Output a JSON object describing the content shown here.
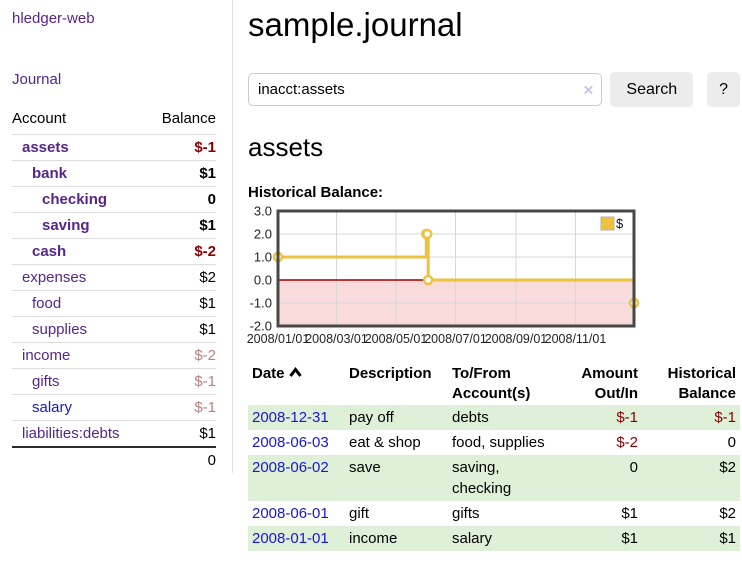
{
  "app": {
    "title": "hledger-web"
  },
  "sidebar": {
    "journal_label": "Journal",
    "accounts_table": {
      "account_header": "Account",
      "balance_header": "Balance",
      "rows": [
        {
          "name": "assets",
          "balance": "$-1",
          "depth": 1,
          "in_account": true,
          "balance_style": "negative"
        },
        {
          "name": "bank",
          "balance": "$1",
          "depth": 2,
          "in_account": true,
          "balance_style": "positive"
        },
        {
          "name": "checking",
          "balance": "0",
          "depth": 3,
          "in_account": true,
          "balance_style": "positive"
        },
        {
          "name": "saving",
          "balance": "$1",
          "depth": 3,
          "in_account": true,
          "balance_style": "positive"
        },
        {
          "name": "cash",
          "balance": "$-2",
          "depth": 2,
          "in_account": true,
          "balance_style": "negative"
        },
        {
          "name": "expenses",
          "balance": "$2",
          "depth": 1,
          "in_account": false,
          "balance_style": "positive"
        },
        {
          "name": "food",
          "balance": "$1",
          "depth": 2,
          "in_account": false,
          "balance_style": "positive"
        },
        {
          "name": "supplies",
          "balance": "$1",
          "depth": 2,
          "in_account": false,
          "balance_style": "positive"
        },
        {
          "name": "income",
          "balance": "$-2",
          "depth": 1,
          "in_account": false,
          "balance_style": "negative-muted"
        },
        {
          "name": "gifts",
          "balance": "$-1",
          "depth": 2,
          "in_account": false,
          "balance_style": "negative-muted"
        },
        {
          "name": "salary",
          "balance": "$-1",
          "depth": 2,
          "in_account": false,
          "balance_style": "negative-muted",
          "link_style": "unvisited"
        },
        {
          "name": "liabilities:debts",
          "balance": "$1",
          "depth": 1,
          "in_account": false,
          "balance_style": "positive"
        }
      ],
      "total": "0"
    }
  },
  "main": {
    "title": "sample.journal",
    "search": {
      "value": "inacct:assets",
      "clear_icon": "×",
      "button_label": "Search",
      "help_label": "?"
    },
    "account_heading": "assets",
    "chart_label": "Historical Balance:"
  },
  "chart_data": {
    "type": "line",
    "title": "Historical Balance",
    "style": "step",
    "series": [
      {
        "name": "$",
        "color": "#edc240",
        "points": [
          [
            "2008-01-01",
            1
          ],
          [
            "2008-06-01",
            2
          ],
          [
            "2008-06-02",
            2
          ],
          [
            "2008-06-03",
            0
          ],
          [
            "2008-12-31",
            -1
          ]
        ]
      }
    ],
    "xlim": [
      "2008-01-01",
      "2008-12-31"
    ],
    "ylim": [
      -2,
      3
    ],
    "yticks": [
      {
        "value": 3,
        "label": "3.0"
      },
      {
        "value": 2,
        "label": "2.0"
      },
      {
        "value": 1,
        "label": "1.0"
      },
      {
        "value": 0,
        "label": "0.0"
      },
      {
        "value": -1,
        "label": "-1.0"
      },
      {
        "value": -2,
        "label": "-2.0"
      }
    ],
    "xticks": [
      {
        "date": "2008-01-01",
        "label": "2008/01/01"
      },
      {
        "date": "2008-03-01",
        "label": "2008/03/01"
      },
      {
        "date": "2008-05-01",
        "label": "2008/05/01"
      },
      {
        "date": "2008-07-01",
        "label": "2008/07/01"
      },
      {
        "date": "2008-09-01",
        "label": "2008/09/01"
      },
      {
        "date": "2008-11-01",
        "label": "2008/11/01"
      }
    ],
    "legend": {
      "position": "top-right",
      "entries": [
        {
          "label": "$",
          "color": "#edc240"
        }
      ]
    },
    "grid": true,
    "grid_color": "#d8d8d8",
    "frame_color": "#474747",
    "zero_line_color": "#a40000",
    "negative_region_color": "#f9dbdb"
  },
  "transactions": {
    "headers": {
      "date": "Date",
      "description": "Description",
      "accounts": "To/From Account(s)",
      "amount": "Amount Out/In",
      "balance": "Historical Balance"
    },
    "rows": [
      {
        "date": "2008-12-31",
        "description": "pay off",
        "accounts": "debts",
        "amount": "$-1",
        "balance": "$-1",
        "amount_negative": true,
        "balance_negative": true
      },
      {
        "date": "2008-06-03",
        "description": "eat & shop",
        "accounts": "food, supplies",
        "amount": "$-2",
        "balance": "0",
        "amount_negative": true,
        "balance_negative": false
      },
      {
        "date": "2008-06-02",
        "description": "save",
        "accounts": "saving, checking",
        "amount": "0",
        "balance": "$2",
        "amount_negative": false,
        "balance_negative": false
      },
      {
        "date": "2008-06-01",
        "description": "gift",
        "accounts": "gifts",
        "amount": "$1",
        "balance": "$2",
        "amount_negative": false,
        "balance_negative": false
      },
      {
        "date": "2008-01-01",
        "description": "income",
        "accounts": "salary",
        "amount": "$1",
        "balance": "$1",
        "amount_negative": false,
        "balance_negative": false
      }
    ]
  }
}
